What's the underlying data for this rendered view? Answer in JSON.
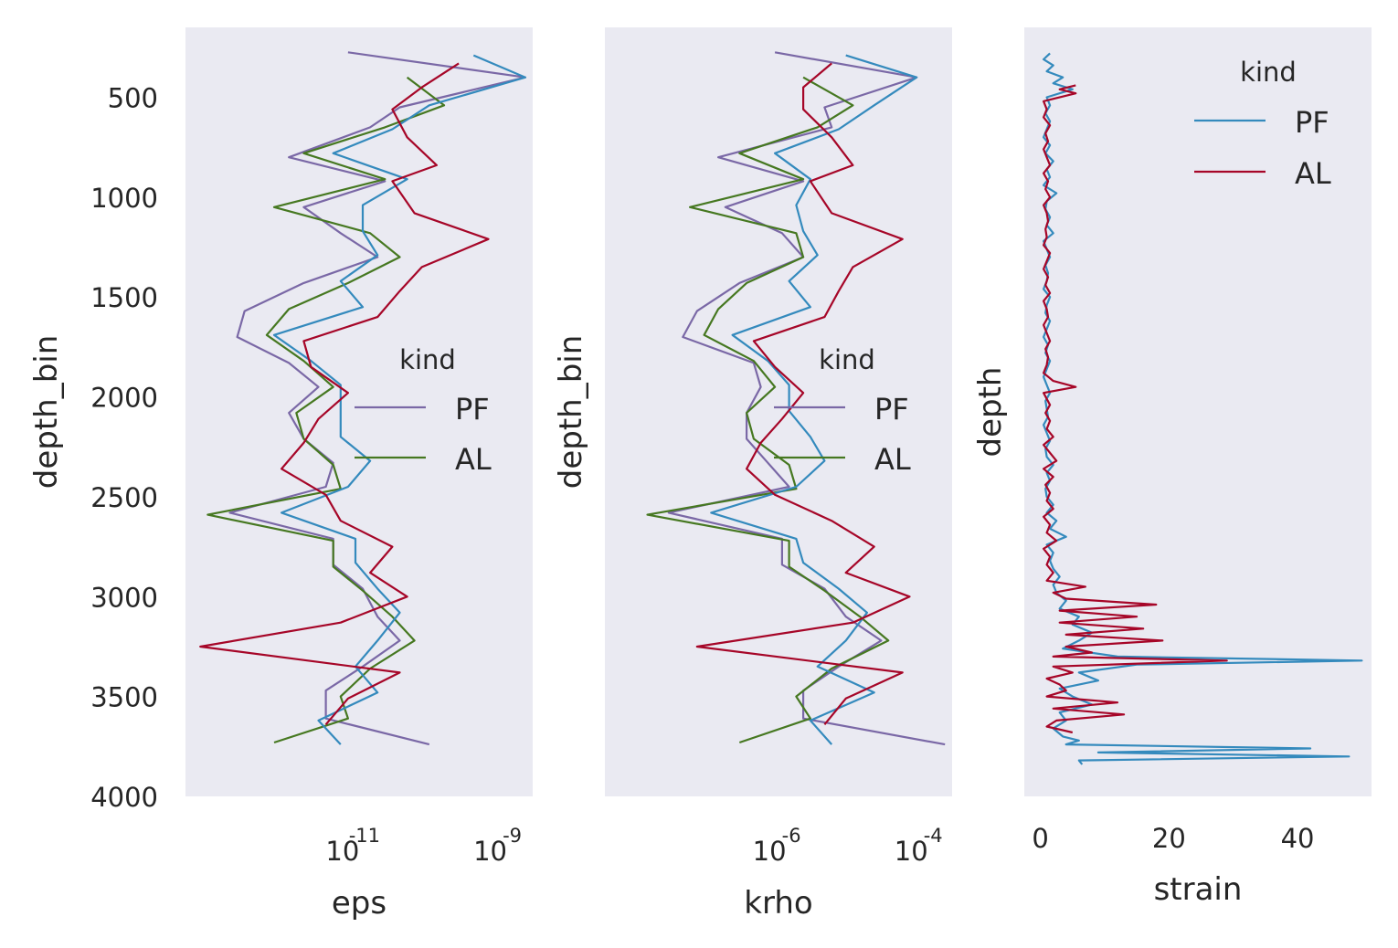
{
  "chart_data": [
    {
      "type": "line",
      "orientation": "vertical-profile",
      "xlabel": "eps",
      "ylabel": "depth_bin",
      "xscale": "log",
      "xlim_log10": [
        -13.2,
        -8.5
      ],
      "xticks": [
        {
          "exp": -11,
          "base": "10",
          "sup": "-11"
        },
        {
          "exp": -9,
          "base": "10",
          "sup": "-9"
        }
      ],
      "ylim": [
        4000,
        150
      ],
      "yticks": [
        500,
        1000,
        1500,
        2000,
        2500,
        3000,
        3500,
        4000
      ],
      "grid": false,
      "legend": {
        "title": "kind",
        "position": "center-right",
        "entries": [
          "PF",
          "AL"
        ]
      },
      "series": [
        {
          "name": "PF",
          "legend": true,
          "color": "#7a68a6",
          "depth": [
            275,
            400,
            550,
            650,
            800,
            920,
            1050,
            1180,
            1300,
            1430,
            1570,
            1700,
            1830,
            1950,
            2080,
            2210,
            2330,
            2450,
            2580,
            2710,
            2840,
            2960,
            3100,
            3220,
            3350,
            3470,
            3610,
            3740
          ],
          "log10_x": [
            -11.0,
            -8.6,
            -10.3,
            -10.7,
            -11.8,
            -10.5,
            -11.6,
            -11.1,
            -10.6,
            -11.6,
            -12.4,
            -12.5,
            -11.8,
            -11.4,
            -11.8,
            -11.6,
            -11.2,
            -11.3,
            -12.6,
            -11.2,
            -11.2,
            -10.8,
            -10.6,
            -10.3,
            -10.8,
            -11.3,
            -11.3,
            -9.9
          ]
        },
        {
          "name": "AL",
          "legend": true,
          "color": "#467821",
          "depth": [
            400,
            540,
            650,
            780,
            910,
            1050,
            1180,
            1300,
            1430,
            1560,
            1690,
            1820,
            1950,
            2080,
            2210,
            2340,
            2460,
            2590,
            2720,
            2850,
            2970,
            3100,
            3220,
            3360,
            3500,
            3610,
            3730
          ],
          "log10_x": [
            -10.2,
            -9.7,
            -10.5,
            -11.6,
            -10.5,
            -12.0,
            -10.7,
            -10.3,
            -11.0,
            -11.8,
            -12.1,
            -11.6,
            -11.2,
            -11.7,
            -11.6,
            -11.2,
            -11.1,
            -12.9,
            -11.2,
            -11.2,
            -10.8,
            -10.4,
            -10.1,
            -10.7,
            -11.1,
            -11.0,
            -12.0
          ]
        },
        {
          "name": "PF",
          "legend": false,
          "color": "#348abd",
          "depth": [
            290,
            400,
            540,
            660,
            780,
            910,
            1040,
            1170,
            1290,
            1420,
            1550,
            1690,
            1820,
            1940,
            2070,
            2200,
            2320,
            2450,
            2580,
            2710,
            2830,
            2960,
            3080,
            3220,
            3350,
            3480,
            3620,
            3740
          ],
          "log10_x": [
            -9.3,
            -8.6,
            -9.9,
            -10.4,
            -11.2,
            -10.2,
            -10.8,
            -10.8,
            -10.6,
            -11.1,
            -10.8,
            -12.0,
            -11.5,
            -11.1,
            -11.1,
            -11.1,
            -10.7,
            -11.0,
            -11.9,
            -10.9,
            -10.9,
            -10.6,
            -10.3,
            -10.6,
            -10.9,
            -10.6,
            -11.4,
            -11.1
          ]
        },
        {
          "name": "AL",
          "legend": true,
          "color": "#a60628",
          "depth": [
            330,
            450,
            560,
            700,
            840,
            920,
            1080,
            1210,
            1350,
            1470,
            1600,
            1720,
            1850,
            1980,
            2110,
            2230,
            2360,
            2490,
            2620,
            2750,
            2880,
            3000,
            3130,
            3250,
            3380,
            3510,
            3640
          ],
          "log10_x": [
            -9.5,
            -10.0,
            -10.4,
            -10.2,
            -9.8,
            -10.4,
            -10.1,
            -9.1,
            -10.0,
            -10.3,
            -10.6,
            -11.6,
            -11.5,
            -11.0,
            -11.4,
            -11.6,
            -11.9,
            -11.3,
            -11.1,
            -10.4,
            -10.7,
            -10.2,
            -11.1,
            -13.0,
            -10.3,
            -11.0,
            -11.3
          ]
        }
      ]
    },
    {
      "type": "line",
      "orientation": "vertical-profile",
      "xlabel": "krho",
      "ylabel": "depth_bin",
      "xscale": "log",
      "xlim_log10": [
        -8.4,
        -3.5
      ],
      "xticks": [
        {
          "exp": -6,
          "base": "10",
          "sup": "-6"
        },
        {
          "exp": -4,
          "base": "10",
          "sup": "-4"
        }
      ],
      "ylim": [
        4000,
        150
      ],
      "grid": false,
      "legend": {
        "title": "kind",
        "position": "center-right",
        "entries": [
          "PF",
          "AL"
        ]
      },
      "series": [
        {
          "name": "PF",
          "legend": true,
          "color": "#7a68a6",
          "depth": [
            275,
            400,
            550,
            650,
            800,
            920,
            1050,
            1180,
            1300,
            1430,
            1570,
            1700,
            1830,
            1950,
            2080,
            2210,
            2330,
            2450,
            2580,
            2710,
            2840,
            2960,
            3100,
            3220,
            3350,
            3470,
            3610,
            3740
          ],
          "log10_x": [
            -6.0,
            -4.0,
            -5.3,
            -5.2,
            -6.8,
            -5.6,
            -6.7,
            -5.9,
            -5.6,
            -6.5,
            -7.1,
            -7.3,
            -6.3,
            -6.2,
            -6.4,
            -6.4,
            -6.1,
            -5.8,
            -7.5,
            -5.9,
            -5.9,
            -5.3,
            -5.0,
            -4.5,
            -5.1,
            -5.6,
            -5.6,
            -3.6
          ]
        },
        {
          "name": "AL",
          "legend": true,
          "color": "#467821",
          "depth": [
            400,
            540,
            650,
            780,
            910,
            1050,
            1180,
            1300,
            1430,
            1560,
            1690,
            1820,
            1950,
            2080,
            2210,
            2340,
            2460,
            2590,
            2720,
            2850,
            2970,
            3100,
            3220,
            3360,
            3500,
            3610,
            3730
          ],
          "log10_x": [
            -5.6,
            -4.9,
            -5.4,
            -6.5,
            -5.6,
            -7.2,
            -5.7,
            -5.6,
            -6.4,
            -6.8,
            -7.0,
            -6.3,
            -6.0,
            -6.4,
            -6.3,
            -5.8,
            -5.7,
            -7.8,
            -5.8,
            -5.8,
            -5.3,
            -4.8,
            -4.4,
            -5.2,
            -5.7,
            -5.5,
            -6.5
          ]
        },
        {
          "name": "PF",
          "legend": false,
          "color": "#348abd",
          "depth": [
            290,
            400,
            540,
            660,
            780,
            910,
            1040,
            1170,
            1290,
            1420,
            1550,
            1690,
            1820,
            1940,
            2070,
            2200,
            2320,
            2450,
            2580,
            2710,
            2830,
            2960,
            3080,
            3220,
            3350,
            3480,
            3620,
            3740
          ],
          "log10_x": [
            -5.0,
            -4.0,
            -4.6,
            -5.1,
            -6.0,
            -5.5,
            -5.7,
            -5.6,
            -5.4,
            -5.8,
            -5.5,
            -6.6,
            -6.1,
            -5.8,
            -5.8,
            -5.5,
            -5.3,
            -5.7,
            -6.9,
            -5.7,
            -5.6,
            -5.1,
            -4.7,
            -5.0,
            -5.4,
            -4.6,
            -5.5,
            -5.2
          ]
        },
        {
          "name": "AL",
          "legend": true,
          "color": "#a60628",
          "depth": [
            330,
            450,
            560,
            700,
            840,
            920,
            1080,
            1210,
            1350,
            1470,
            1600,
            1720,
            1850,
            1980,
            2110,
            2230,
            2360,
            2490,
            2620,
            2750,
            2880,
            3000,
            3130,
            3250,
            3380,
            3510,
            3640
          ],
          "log10_x": [
            -5.2,
            -5.6,
            -5.6,
            -5.2,
            -4.9,
            -5.5,
            -5.2,
            -4.2,
            -4.9,
            -5.1,
            -5.3,
            -6.3,
            -6.0,
            -5.6,
            -5.9,
            -6.2,
            -6.4,
            -6.0,
            -5.2,
            -4.6,
            -5.0,
            -4.1,
            -4.9,
            -7.1,
            -4.2,
            -5.0,
            -5.3
          ]
        }
      ]
    },
    {
      "type": "line",
      "orientation": "vertical-profile",
      "xlabel": "strain",
      "ylabel": "depth",
      "xlim": [
        -2.5,
        51.5
      ],
      "xticks": [
        0,
        20,
        40
      ],
      "ylim": [
        4000,
        150
      ],
      "grid": false,
      "legend": {
        "title": "kind",
        "position": "top-right",
        "entries": [
          "PF",
          "AL"
        ]
      },
      "series": [
        {
          "name": "PF",
          "color": "#348abd",
          "depth": [
            280,
            310,
            340,
            370,
            400,
            430,
            460,
            500,
            540,
            580,
            620,
            660,
            700,
            740,
            780,
            820,
            860,
            900,
            940,
            980,
            1020,
            1060,
            1100,
            1140,
            1180,
            1220,
            1260,
            1300,
            1340,
            1380,
            1420,
            1460,
            1500,
            1540,
            1580,
            1620,
            1660,
            1700,
            1740,
            1780,
            1820,
            1860,
            1900,
            1940,
            1980,
            2020,
            2060,
            2100,
            2140,
            2180,
            2220,
            2260,
            2300,
            2340,
            2380,
            2420,
            2460,
            2500,
            2540,
            2580,
            2620,
            2660,
            2700,
            2740,
            2780,
            2820,
            2860,
            2900,
            2940,
            2980,
            3020,
            3060,
            3100,
            3140,
            3180,
            3220,
            3260,
            3300,
            3320,
            3340,
            3380,
            3420,
            3460,
            3500,
            3540,
            3580,
            3620,
            3660,
            3700,
            3720,
            3740,
            3760,
            3780,
            3800,
            3820,
            3840
          ],
          "x": [
            1.5,
            0.5,
            2.0,
            1.0,
            3.5,
            2.0,
            5.0,
            1.0,
            1.5,
            0.8,
            1.5,
            1.0,
            0.5,
            1.5,
            0.8,
            2.0,
            1.0,
            1.5,
            0.5,
            2.5,
            1.0,
            0.8,
            1.5,
            1.0,
            2.0,
            0.5,
            1.0,
            1.5,
            0.8,
            1.2,
            1.0,
            0.5,
            1.5,
            1.0,
            0.8,
            1.5,
            1.0,
            0.5,
            1.2,
            0.8,
            1.5,
            1.0,
            0.5,
            1.0,
            1.5,
            0.8,
            1.0,
            1.2,
            0.5,
            1.0,
            1.5,
            0.8,
            1.0,
            2.0,
            1.0,
            1.5,
            0.8,
            1.0,
            2.0,
            1.0,
            2.5,
            1.5,
            4.0,
            1.0,
            2.0,
            1.5,
            2.0,
            3.0,
            2.0,
            2.5,
            4.0,
            3.0,
            6.0,
            5.0,
            8.0,
            6.0,
            3.5,
            12.0,
            50.0,
            15.0,
            6.0,
            9.0,
            3.0,
            5.0,
            8.0,
            3.0,
            4.0,
            2.0,
            3.5,
            6.0,
            4.0,
            42.0,
            9.0,
            48.0,
            6.0,
            6.5
          ]
        },
        {
          "name": "AL",
          "color": "#a60628",
          "depth": [
            440,
            460,
            480,
            520,
            560,
            600,
            640,
            680,
            720,
            760,
            800,
            840,
            880,
            920,
            960,
            1000,
            1040,
            1080,
            1120,
            1160,
            1200,
            1240,
            1280,
            1320,
            1360,
            1400,
            1440,
            1480,
            1520,
            1560,
            1600,
            1640,
            1680,
            1720,
            1760,
            1800,
            1840,
            1880,
            1920,
            1950,
            1980,
            2010,
            2040,
            2080,
            2120,
            2160,
            2200,
            2240,
            2280,
            2320,
            2360,
            2400,
            2440,
            2480,
            2520,
            2560,
            2600,
            2640,
            2680,
            2720,
            2760,
            2800,
            2840,
            2880,
            2920,
            2950,
            2980,
            3010,
            3040,
            3070,
            3100,
            3130,
            3160,
            3190,
            3220,
            3250,
            3280,
            3300,
            3320,
            3350,
            3380,
            3410,
            3440,
            3470,
            3500,
            3530,
            3560,
            3590,
            3620,
            3650,
            3680
          ],
          "x": [
            5.5,
            3.0,
            5.5,
            0.5,
            1.0,
            0.5,
            1.5,
            0.8,
            1.2,
            0.5,
            1.0,
            1.5,
            0.5,
            1.2,
            0.8,
            1.5,
            0.5,
            1.0,
            1.2,
            0.8,
            1.0,
            0.5,
            1.5,
            1.0,
            0.5,
            1.2,
            0.8,
            1.5,
            0.5,
            1.0,
            1.2,
            0.5,
            1.0,
            1.5,
            0.8,
            1.2,
            1.0,
            0.5,
            2.0,
            5.5,
            0.5,
            1.0,
            1.5,
            0.8,
            1.5,
            1.0,
            2.0,
            0.5,
            1.5,
            2.5,
            0.5,
            2.0,
            0.8,
            1.5,
            1.0,
            2.0,
            0.5,
            1.5,
            1.0,
            2.5,
            0.5,
            1.5,
            1.0,
            2.0,
            1.0,
            7.0,
            2.0,
            4.0,
            18.0,
            3.0,
            15.0,
            3.0,
            16.0,
            4.0,
            19.0,
            4.0,
            8.0,
            2.0,
            29.0,
            2.0,
            5.0,
            1.0,
            3.0,
            4.0,
            1.0,
            12.0,
            2.0,
            13.0,
            2.5,
            1.0,
            5.0
          ]
        }
      ]
    }
  ]
}
